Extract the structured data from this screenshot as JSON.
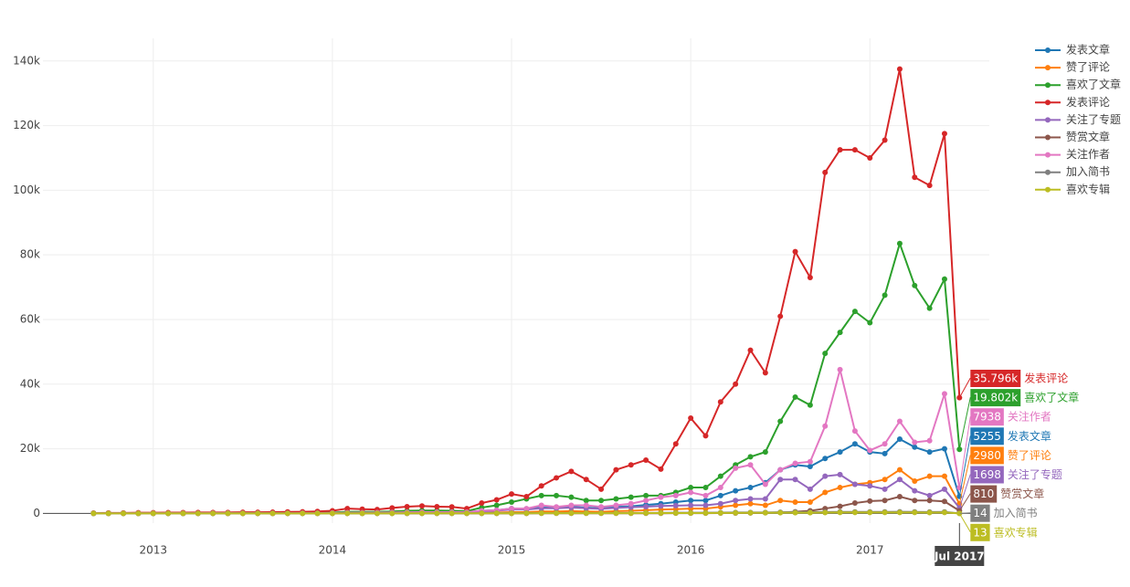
{
  "chart_data": {
    "type": "line",
    "x": [
      "2012-09",
      "2012-10",
      "2012-11",
      "2012-12",
      "2013-01",
      "2013-02",
      "2013-03",
      "2013-04",
      "2013-05",
      "2013-06",
      "2013-07",
      "2013-08",
      "2013-09",
      "2013-10",
      "2013-11",
      "2013-12",
      "2014-01",
      "2014-02",
      "2014-03",
      "2014-04",
      "2014-05",
      "2014-06",
      "2014-07",
      "2014-08",
      "2014-09",
      "2014-10",
      "2014-11",
      "2014-12",
      "2015-01",
      "2015-02",
      "2015-03",
      "2015-04",
      "2015-05",
      "2015-06",
      "2015-07",
      "2015-08",
      "2015-09",
      "2015-10",
      "2015-11",
      "2015-12",
      "2016-01",
      "2016-02",
      "2016-03",
      "2016-04",
      "2016-05",
      "2016-06",
      "2016-07",
      "2016-08",
      "2016-09",
      "2016-10",
      "2016-11",
      "2016-12",
      "2017-01",
      "2017-02",
      "2017-03",
      "2017-04",
      "2017-05",
      "2017-06",
      "2017-07"
    ],
    "series": [
      {
        "name": "发表文章",
        "color": "#1f77b4",
        "values": [
          30,
          30,
          40,
          40,
          50,
          50,
          60,
          60,
          70,
          70,
          80,
          80,
          90,
          100,
          110,
          120,
          150,
          250,
          250,
          300,
          350,
          400,
          450,
          450,
          450,
          400,
          800,
          1000,
          1500,
          1400,
          1800,
          1800,
          2000,
          1800,
          1600,
          2000,
          2200,
          2600,
          3000,
          3500,
          4000,
          4000,
          5500,
          7000,
          8000,
          9500,
          13500,
          15000,
          14500,
          17000,
          19000,
          21500,
          19000,
          18500,
          23000,
          20500,
          19000,
          20000,
          5255
        ]
      },
      {
        "name": "赞了评论",
        "color": "#ff7f0e",
        "values": [
          0,
          0,
          0,
          0,
          0,
          0,
          0,
          0,
          0,
          0,
          10,
          10,
          10,
          20,
          20,
          30,
          30,
          50,
          50,
          60,
          80,
          100,
          120,
          120,
          120,
          100,
          200,
          250,
          400,
          400,
          600,
          600,
          700,
          600,
          500,
          700,
          800,
          1000,
          1200,
          1300,
          1500,
          1500,
          2000,
          2500,
          3000,
          2500,
          4000,
          3500,
          3500,
          6500,
          8000,
          9000,
          9500,
          10500,
          13500,
          10000,
          11500,
          11500,
          2980
        ]
      },
      {
        "name": "喜欢了文章",
        "color": "#2ca02c",
        "values": [
          50,
          50,
          80,
          80,
          100,
          100,
          120,
          120,
          150,
          150,
          150,
          180,
          200,
          200,
          250,
          300,
          300,
          500,
          500,
          500,
          600,
          800,
          900,
          900,
          800,
          700,
          1800,
          2500,
          3500,
          4500,
          5500,
          5500,
          5000,
          4000,
          4000,
          4500,
          5000,
          5500,
          5500,
          6500,
          8000,
          8000,
          11500,
          15000,
          17500,
          19000,
          28500,
          36000,
          33500,
          49500,
          56000,
          62500,
          59000,
          67500,
          83500,
          70500,
          63500,
          72500,
          19802
        ],
        "value_labels": [
          null,
          null,
          null,
          null,
          null,
          null,
          null,
          null,
          null,
          null,
          null,
          null,
          null,
          null,
          null,
          null,
          null,
          null,
          null,
          null,
          null,
          null,
          null,
          null,
          null,
          null,
          null,
          null,
          null,
          null,
          null,
          null,
          null,
          null,
          null,
          null,
          null,
          null,
          null,
          null,
          null,
          null,
          null,
          null,
          null,
          null,
          null,
          null,
          null,
          null,
          null,
          null,
          null,
          null,
          null,
          null,
          null,
          null,
          "19.802k"
        ]
      },
      {
        "name": "发表评论",
        "color": "#d62728",
        "values": [
          100,
          150,
          150,
          200,
          200,
          250,
          250,
          300,
          300,
          300,
          350,
          350,
          400,
          450,
          500,
          600,
          800,
          1500,
          1300,
          1200,
          1700,
          2100,
          2300,
          2100,
          2000,
          1500,
          3200,
          4200,
          6000,
          5200,
          8500,
          11000,
          13000,
          10500,
          7500,
          13500,
          15000,
          16500,
          13700,
          21500,
          29500,
          24000,
          34500,
          40000,
          50500,
          43500,
          61000,
          81000,
          73000,
          105500,
          112500,
          112500,
          110000,
          115500,
          137500,
          104000,
          101500,
          117500,
          35796
        ],
        "value_labels": [
          null,
          null,
          null,
          null,
          null,
          null,
          null,
          null,
          null,
          null,
          null,
          null,
          null,
          null,
          null,
          null,
          null,
          null,
          null,
          null,
          null,
          null,
          null,
          null,
          null,
          null,
          null,
          null,
          null,
          null,
          null,
          null,
          null,
          null,
          null,
          null,
          null,
          null,
          null,
          null,
          null,
          null,
          null,
          null,
          null,
          null,
          null,
          null,
          null,
          null,
          null,
          null,
          null,
          null,
          null,
          null,
          null,
          null,
          "35.796k"
        ]
      },
      {
        "name": "关注了专题",
        "color": "#9467bd",
        "values": [
          0,
          0,
          0,
          0,
          10,
          10,
          10,
          20,
          20,
          20,
          30,
          30,
          40,
          40,
          50,
          60,
          80,
          150,
          150,
          200,
          250,
          300,
          350,
          350,
          350,
          300,
          600,
          800,
          1200,
          1200,
          1600,
          1600,
          1800,
          1600,
          1400,
          1700,
          1900,
          2100,
          2300,
          2400,
          2500,
          2500,
          3000,
          4000,
          4500,
          4500,
          10500,
          10500,
          7500,
          11500,
          12000,
          9000,
          8500,
          7500,
          10500,
          7000,
          5500,
          7500,
          1698
        ]
      },
      {
        "name": "赞赏文章",
        "color": "#8c564b",
        "values": [
          0,
          0,
          0,
          0,
          0,
          0,
          0,
          0,
          0,
          0,
          0,
          0,
          0,
          0,
          0,
          0,
          0,
          0,
          0,
          0,
          0,
          0,
          0,
          0,
          0,
          0,
          0,
          10,
          10,
          10,
          20,
          20,
          20,
          20,
          20,
          30,
          30,
          40,
          50,
          60,
          70,
          80,
          100,
          120,
          150,
          200,
          300,
          500,
          800,
          1500,
          2200,
          3200,
          3800,
          4000,
          5200,
          4000,
          4000,
          3700,
          810
        ]
      },
      {
        "name": "关注作者",
        "color": "#e377c2",
        "values": [
          20,
          20,
          30,
          30,
          40,
          40,
          50,
          50,
          60,
          60,
          70,
          70,
          80,
          80,
          100,
          100,
          150,
          200,
          200,
          250,
          300,
          350,
          400,
          400,
          400,
          400,
          800,
          1000,
          1500,
          1500,
          2500,
          2000,
          2500,
          2500,
          2000,
          2500,
          3000,
          4000,
          5000,
          5500,
          6500,
          5500,
          8000,
          14000,
          15000,
          9000,
          13500,
          15500,
          16000,
          27000,
          44500,
          25500,
          19500,
          21500,
          28500,
          22000,
          22500,
          37000,
          7938
        ]
      },
      {
        "name": "加入简书",
        "color": "#7f7f7f",
        "values": [
          10,
          10,
          10,
          10,
          10,
          10,
          10,
          10,
          10,
          20,
          20,
          20,
          20,
          20,
          20,
          30,
          30,
          40,
          40,
          50,
          50,
          50,
          60,
          60,
          60,
          60,
          80,
          90,
          100,
          100,
          120,
          120,
          130,
          120,
          110,
          130,
          140,
          160,
          180,
          200,
          220,
          220,
          250,
          280,
          300,
          300,
          350,
          380,
          370,
          420,
          450,
          470,
          460,
          470,
          500,
          450,
          440,
          460,
          14
        ]
      },
      {
        "name": "喜欢专辑",
        "color": "#bcbd22",
        "values": [
          0,
          0,
          0,
          0,
          0,
          0,
          0,
          0,
          0,
          0,
          0,
          0,
          0,
          0,
          0,
          0,
          0,
          10,
          10,
          10,
          10,
          20,
          20,
          20,
          20,
          20,
          30,
          40,
          50,
          50,
          60,
          60,
          70,
          60,
          60,
          70,
          80,
          90,
          100,
          110,
          120,
          120,
          140,
          160,
          180,
          180,
          200,
          220,
          210,
          250,
          270,
          280,
          270,
          280,
          300,
          270,
          260,
          280,
          13
        ]
      }
    ],
    "hover_x_label": "Jul 2017",
    "xlim": [
      "2012-05",
      "2017-09"
    ],
    "xticks": [
      {
        "value": "2013-01",
        "label": "2013"
      },
      {
        "value": "2014-01",
        "label": "2014"
      },
      {
        "value": "2015-01",
        "label": "2015"
      },
      {
        "value": "2016-01",
        "label": "2016"
      },
      {
        "value": "2017-01",
        "label": "2017"
      }
    ],
    "ylim": [
      -3000,
      147000
    ],
    "yticks": [
      0,
      {
        "value": 20000,
        "label": "20k"
      },
      {
        "value": 40000,
        "label": "40k"
      },
      {
        "value": 60000,
        "label": "60k"
      },
      {
        "value": 80000,
        "label": "80k"
      },
      {
        "value": 100000,
        "label": "100k"
      },
      {
        "value": 120000,
        "label": "120k"
      },
      {
        "value": 140000,
        "label": "140k"
      }
    ],
    "grid": true,
    "legend": "top-right"
  }
}
